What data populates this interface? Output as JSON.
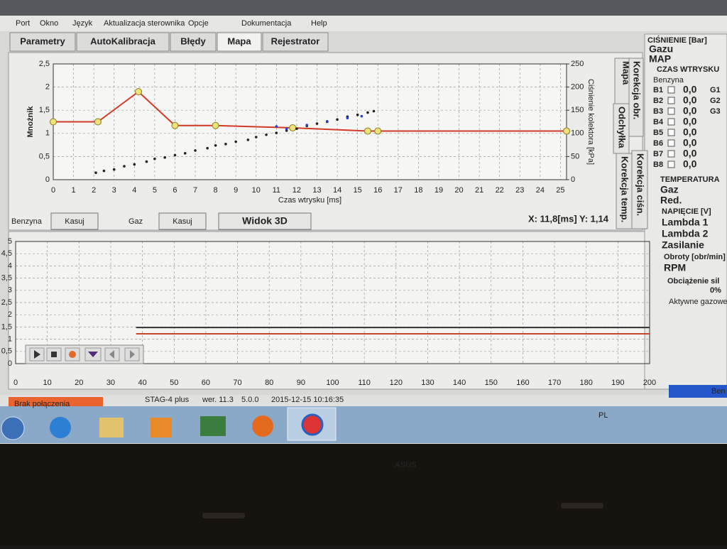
{
  "menu": [
    "Port",
    "Okno",
    "Język",
    "Aktualizacja sterownika",
    "Opcje",
    "Dokumentacja",
    "Help"
  ],
  "tabs": [
    "Parametry",
    "AutoKalibracja",
    "Błędy",
    "Mapa",
    "Rejestrator"
  ],
  "side_tabs": [
    "Mapa",
    "Korekcja obr.",
    "Odchyłka",
    "Korekcja ciśn.",
    "Korekcja temp."
  ],
  "chart_data": [
    {
      "type": "line",
      "y_label": "Mnożnik",
      "y2_label": "Ciśnienie kolektora [kPa]",
      "x_label": "Czas wtrysku [ms]",
      "xlim": [
        0,
        25.3
      ],
      "xticks": [
        0,
        1,
        2,
        3,
        4,
        5,
        6,
        7,
        8,
        9,
        10,
        11,
        12,
        13,
        14,
        15,
        16,
        17,
        18,
        19,
        20,
        21,
        22,
        23,
        24,
        25
      ],
      "ylim": [
        0,
        2.5
      ],
      "yticks": [
        0,
        {
          "value": 0.5,
          "label": "0,5"
        },
        1,
        {
          "value": 1.5,
          "label": "1,5"
        },
        2,
        {
          "value": 2.5,
          "label": "2,5"
        }
      ],
      "y2lim": [
        0,
        250
      ],
      "y2ticks": [
        0,
        50,
        100,
        150,
        200,
        250
      ],
      "grid": true,
      "series": [
        {
          "color": "#d23a26",
          "marker": "circle",
          "marker_color": "#eee27a",
          "axis": "y",
          "x": [
            0,
            2.2,
            4.2,
            6,
            8,
            11.8,
            15.5,
            16,
            25.3
          ],
          "values": [
            1.25,
            1.25,
            1.9,
            1.17,
            1.17,
            1.12,
            1.05,
            1.05,
            1.05
          ]
        },
        {
          "color": "#222222",
          "marker": "dot",
          "marker_color": "#222222",
          "axis": "y2",
          "x": [
            2.1,
            2.5,
            3,
            3.5,
            4,
            4.6,
            5,
            5.5,
            6,
            6.5,
            7,
            7.6,
            8,
            8.5,
            9,
            9.6,
            10,
            10.5,
            11,
            11.5,
            12,
            12.5,
            13,
            13.5,
            14,
            14.5,
            15,
            15.5,
            15.8
          ],
          "values": [
            15,
            19,
            22,
            29,
            33,
            39,
            45,
            48,
            53,
            57,
            63,
            68,
            74,
            77,
            82,
            86,
            92,
            97,
            101,
            106,
            110,
            116,
            121,
            125,
            130,
            136,
            140,
            145,
            148
          ]
        },
        {
          "color": "#2a3fc8",
          "marker": "dot",
          "marker_color": "#2a3fc8",
          "axis": "y2",
          "x": [
            11,
            11.5,
            12.5,
            13.5,
            14.5,
            15.2
          ],
          "values": [
            115,
            110,
            118,
            126,
            133,
            137
          ]
        }
      ]
    },
    {
      "type": "line",
      "xlim": [
        0,
        200
      ],
      "xticks": [
        0,
        10,
        20,
        30,
        40,
        50,
        60,
        70,
        80,
        90,
        100,
        110,
        120,
        130,
        140,
        150,
        160,
        170,
        180,
        190,
        200
      ],
      "ylim": [
        0,
        5
      ],
      "yticks": [
        0,
        {
          "value": 0.5,
          "label": "0,5"
        },
        1,
        {
          "value": 1.5,
          "label": "1,5"
        },
        2,
        {
          "value": 2.5,
          "label": "2,5"
        },
        3,
        {
          "value": 3.5,
          "label": "3,5"
        },
        4,
        {
          "value": 4.5,
          "label": "4,5"
        },
        5
      ],
      "grid": true,
      "series": [
        {
          "color": "#333333",
          "axis": "y",
          "x": [
            38,
            200
          ],
          "values": [
            1.48,
            1.48
          ]
        },
        {
          "color": "#c8442e",
          "axis": "y",
          "x": [
            38,
            200
          ],
          "values": [
            1.22,
            1.22
          ]
        }
      ]
    }
  ],
  "map_controls": {
    "petrol": "Benzyna",
    "clear_petrol": "Kasuj",
    "gas": "Gaz",
    "clear_gas": "Kasuj",
    "view_3d": "Widok 3D",
    "cursor": "X: 11,8[ms] Y: 1,14"
  },
  "panel": {
    "pressure_title": "CIŚNIENIE [Bar]",
    "gas_pressure": "Gazu",
    "map": "MAP",
    "injection_title": "CZAS WTRYSKU",
    "petrol": "Benzyna",
    "banks": [
      "B1",
      "B2",
      "B3",
      "B4",
      "B5",
      "B6",
      "B7",
      "B8"
    ],
    "bank_values": [
      "0,0",
      "0,0",
      "0,0",
      "0,0",
      "0,0",
      "0,0",
      "0,0",
      "0,0"
    ],
    "gas_banks": [
      "G1",
      "G2",
      "G3"
    ],
    "temperature_title": "TEMPERATURA",
    "temp_gas": "Gaz",
    "temp_reducer": "Red.",
    "voltage_title": "NAPIĘCIE [V]",
    "lambda1": "Lambda 1",
    "lambda2": "Lambda 2",
    "supply": "Zasilanie",
    "rpm_title": "Obroty [obr/min]",
    "rpm": "RPM",
    "load_title": "Obciążenie sil",
    "load_value": "0%",
    "active_title": "Aktywne gazowe",
    "fuel_indicator": "Ben"
  },
  "status": {
    "connection": "Brak połączenia",
    "device": "STAG-4 plus",
    "version": "wer. 11.3",
    "build": "5.0.0",
    "datetime": "2015-12-15 10:16:35"
  },
  "taskbar": {
    "language": "PL"
  },
  "bezel": {
    "brand": "ASUS"
  }
}
